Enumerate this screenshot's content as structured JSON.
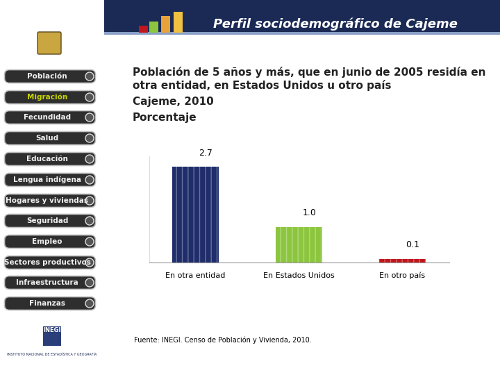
{
  "header": {
    "title": "Perfil sociodemográfico de Cajeme"
  },
  "menu": {
    "items": [
      "Población",
      "Migración",
      "Fecundidad",
      "Salud",
      "Educación",
      "Lengua indígena",
      "Hogares y viviendas",
      "Seguridad",
      "Empleo",
      "Sectores productivos",
      "Infraestructura",
      "Finanzas"
    ],
    "active": "Migración"
  },
  "logo": {
    "name": "INEGI",
    "text": "INSTITUTO NACIONAL DE ESTADÍSTICA Y GEOGRAFÍA"
  },
  "source": "Fuente: INEGI. Censo de Población y Vivienda, 2010.",
  "chart_data": {
    "type": "bar",
    "title": "Población de 5 años y más, que en junio de 2005 residía en otra entidad, en Estados Unidos u otro país",
    "subtitle": "Cajeme, 2010",
    "y_label": "Porcentaje",
    "categories": [
      "En otra entidad",
      "En Estados Unidos",
      "En otro país"
    ],
    "values": [
      2.7,
      1.0,
      0.1
    ],
    "colors": [
      "#1f2d6b",
      "#8cc63e",
      "#c0161c"
    ],
    "ylim": [
      0,
      3
    ],
    "yticks": [],
    "grid": false,
    "data_labels": true,
    "tick_labels": "x"
  }
}
